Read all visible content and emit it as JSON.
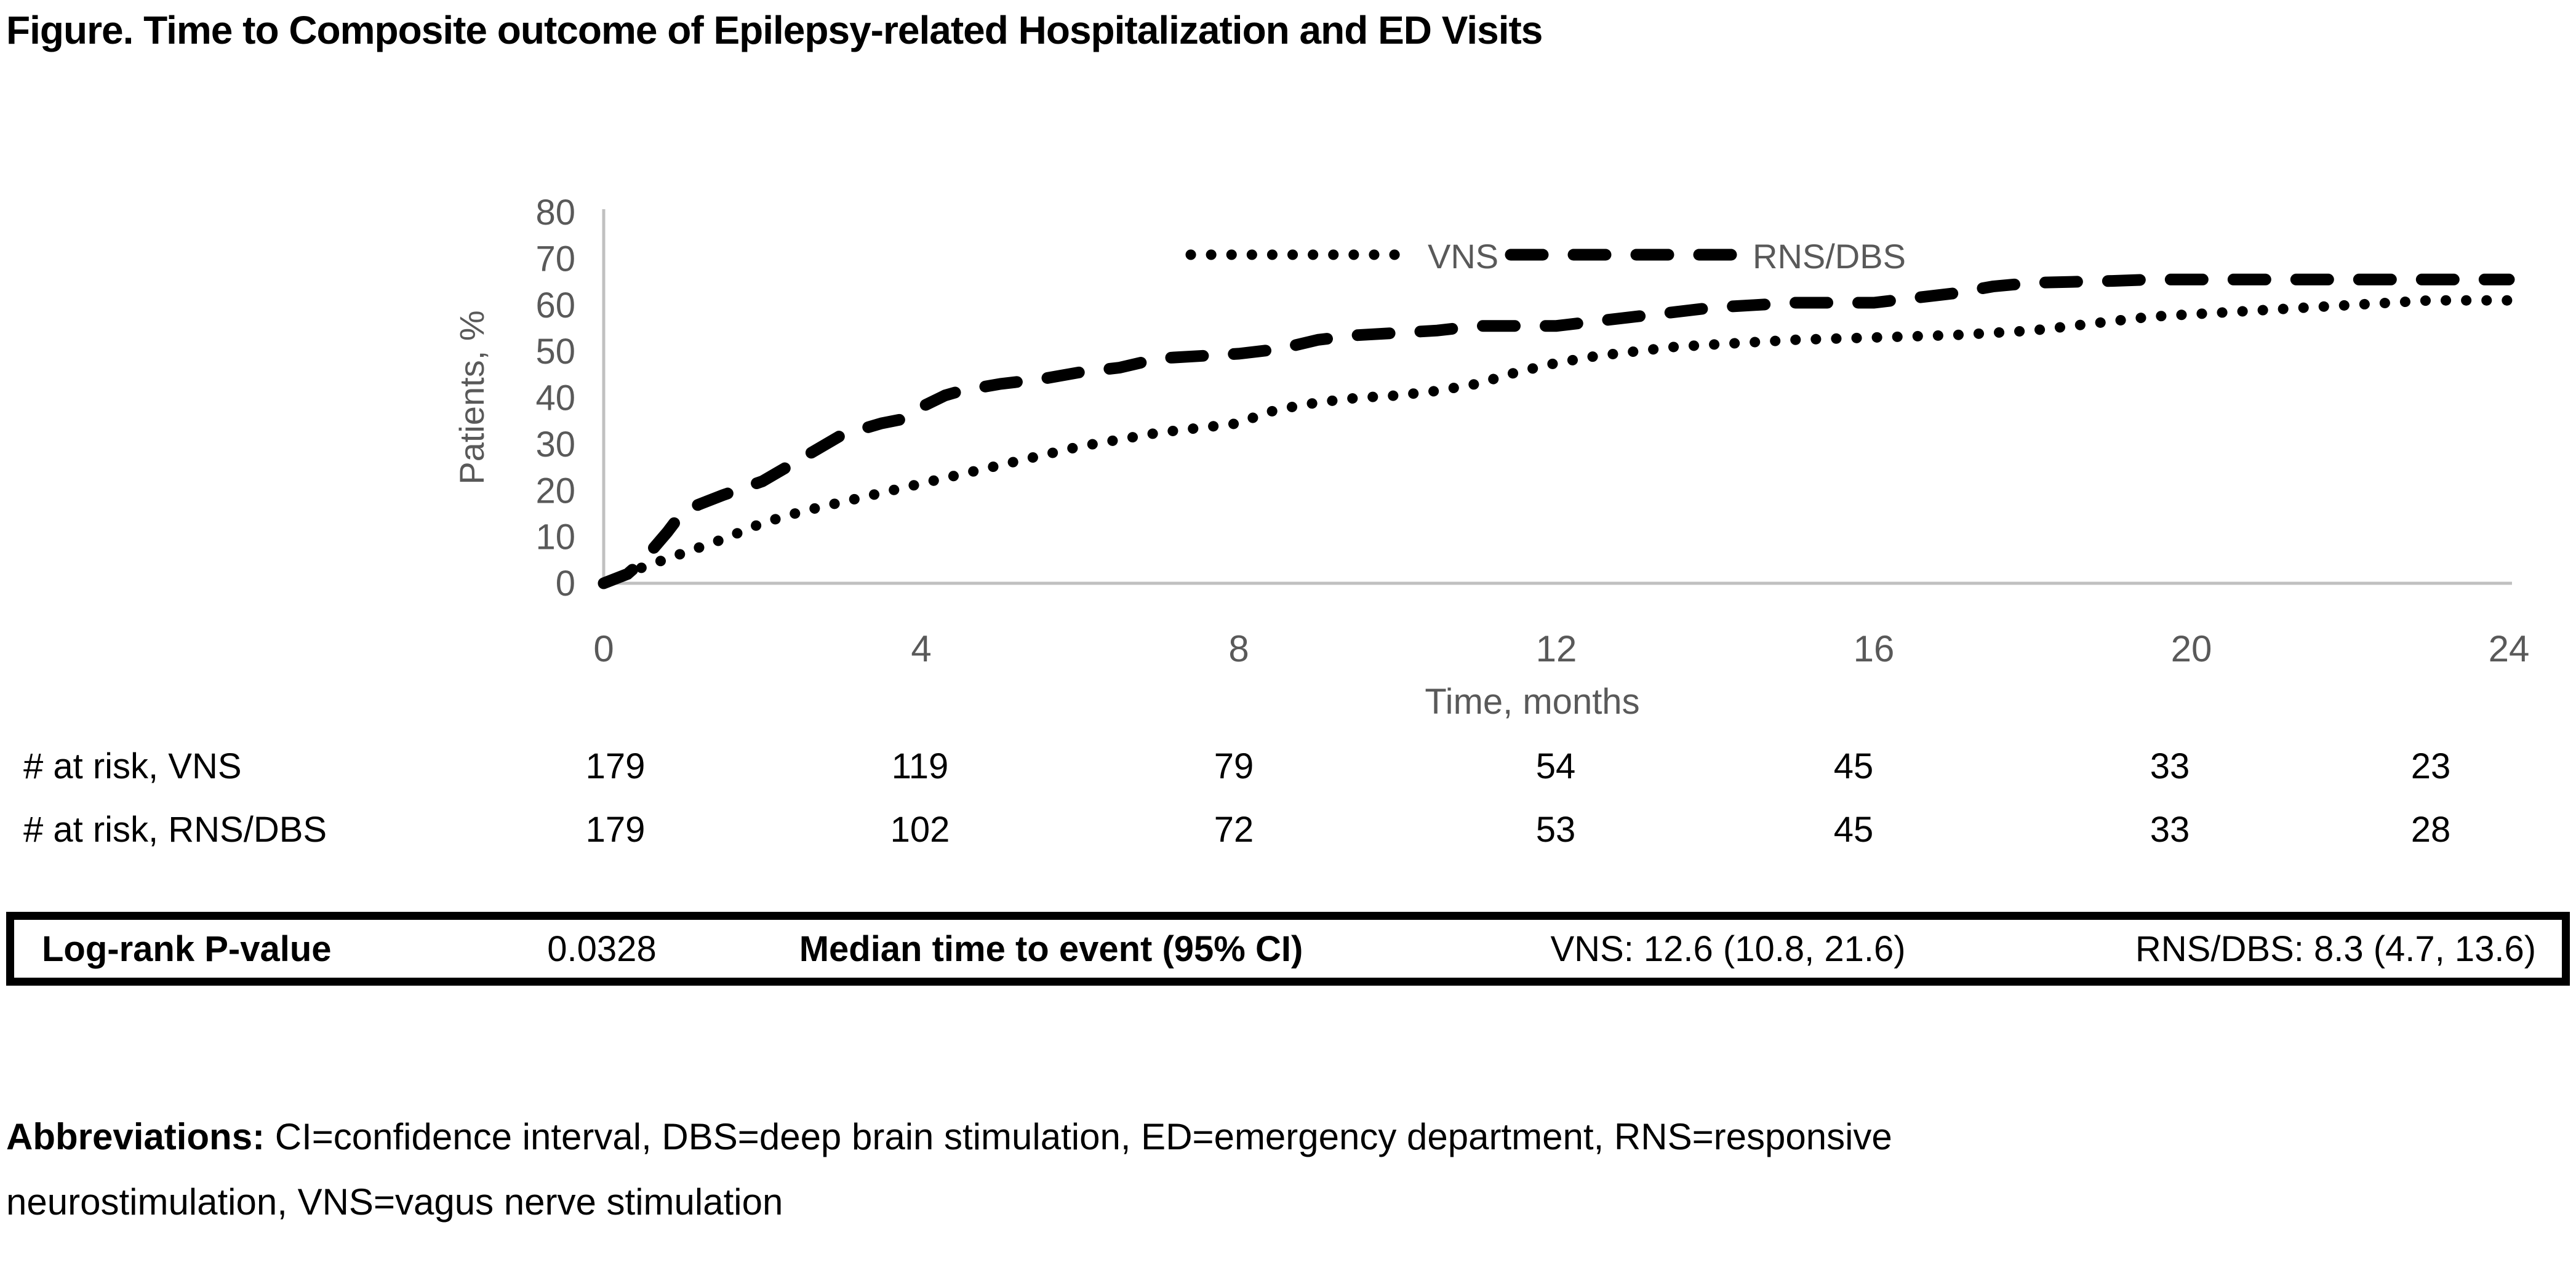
{
  "title": "Figure. Time to Composite outcome of Epilepsy-related Hospitalization and ED Visits",
  "colors": {
    "black": "#000000",
    "label_gray": "#595959",
    "axis_gray": "#c0c0c0"
  },
  "chart_data": {
    "type": "line",
    "title": "",
    "xlabel": "Time, months",
    "ylabel": "Patients, %",
    "xlim": [
      0,
      24
    ],
    "ylim": [
      0,
      80
    ],
    "x_ticks": [
      0,
      4,
      8,
      12,
      16,
      20,
      24
    ],
    "y_ticks": [
      0,
      10,
      20,
      30,
      40,
      50,
      60,
      70,
      80
    ],
    "grid": false,
    "legend_position": "top-center",
    "series": [
      {
        "name": "VNS",
        "style": "dotted",
        "color": "#000000",
        "points": [
          [
            0,
            0
          ],
          [
            0.5,
            3.5
          ],
          [
            1,
            6.5
          ],
          [
            1.5,
            9.5
          ],
          [
            2,
            13
          ],
          [
            2.5,
            15.5
          ],
          [
            3,
            17.5
          ],
          [
            3.5,
            19.5
          ],
          [
            4,
            21.5
          ],
          [
            4.5,
            23.5
          ],
          [
            5,
            25.5
          ],
          [
            5.5,
            27.5
          ],
          [
            6,
            29.5
          ],
          [
            6.5,
            31
          ],
          [
            7,
            32.5
          ],
          [
            7.5,
            33.5
          ],
          [
            8,
            34.5
          ],
          [
            8.3,
            36.5
          ],
          [
            8.5,
            37.5
          ],
          [
            9,
            39
          ],
          [
            9.5,
            40
          ],
          [
            10,
            40.5
          ],
          [
            10.5,
            41.5
          ],
          [
            11,
            43
          ],
          [
            11.5,
            45.5
          ],
          [
            12,
            47.5
          ],
          [
            12.5,
            49
          ],
          [
            13,
            50
          ],
          [
            13.5,
            51
          ],
          [
            14,
            51.5
          ],
          [
            14.5,
            52
          ],
          [
            15,
            52.5
          ],
          [
            16,
            53
          ],
          [
            17,
            53.5
          ],
          [
            17.5,
            54
          ],
          [
            18,
            54.5
          ],
          [
            18.5,
            55.5
          ],
          [
            19,
            56.5
          ],
          [
            19.5,
            57.5
          ],
          [
            20,
            58
          ],
          [
            20.5,
            58.5
          ],
          [
            21,
            59
          ],
          [
            21.5,
            59.5
          ],
          [
            22,
            60
          ],
          [
            22.5,
            60.5
          ],
          [
            23,
            61
          ],
          [
            24,
            61
          ]
        ]
      },
      {
        "name": "RNS/DBS",
        "style": "dashed",
        "color": "#000000",
        "points": [
          [
            0,
            0
          ],
          [
            0.3,
            2
          ],
          [
            0.5,
            5
          ],
          [
            0.8,
            11
          ],
          [
            1,
            15.5
          ],
          [
            1.2,
            17
          ],
          [
            1.5,
            19
          ],
          [
            2,
            22
          ],
          [
            2.3,
            25
          ],
          [
            2.5,
            27
          ],
          [
            3,
            32
          ],
          [
            3.5,
            34.5
          ],
          [
            3.8,
            35.5
          ],
          [
            4,
            38
          ],
          [
            4.3,
            40.5
          ],
          [
            4.5,
            41.5
          ],
          [
            5,
            43
          ],
          [
            5.5,
            44
          ],
          [
            6,
            45.5
          ],
          [
            6.5,
            46.5
          ],
          [
            7,
            48.5
          ],
          [
            7.5,
            49
          ],
          [
            8,
            49.5
          ],
          [
            8.5,
            50.5
          ],
          [
            9,
            52.5
          ],
          [
            9.5,
            53.5
          ],
          [
            10,
            54
          ],
          [
            10.5,
            54.5
          ],
          [
            11,
            55.5
          ],
          [
            11.5,
            55.5
          ],
          [
            12,
            55.5
          ],
          [
            12.5,
            56.5
          ],
          [
            13,
            57.5
          ],
          [
            13.5,
            58.5
          ],
          [
            14,
            59.5
          ],
          [
            14.5,
            60
          ],
          [
            15,
            60.5
          ],
          [
            16,
            60.5
          ],
          [
            16.5,
            61.5
          ],
          [
            17,
            62.5
          ],
          [
            17.5,
            64
          ],
          [
            18,
            64.8
          ],
          [
            18.5,
            65
          ],
          [
            19,
            65.2
          ],
          [
            19.5,
            65.5
          ],
          [
            20,
            65.5
          ],
          [
            21,
            65.5
          ],
          [
            22,
            65.5
          ],
          [
            23,
            65.5
          ],
          [
            24,
            65.5
          ]
        ]
      }
    ]
  },
  "risk_table": {
    "columns": [
      0,
      4,
      8,
      12,
      16,
      20,
      24
    ],
    "rows": [
      {
        "label": "# at risk, VNS",
        "values": [
          "179",
          "119",
          "79",
          "54",
          "45",
          "33",
          "23"
        ]
      },
      {
        "label": "# at risk, RNS/DBS",
        "values": [
          "179",
          "102",
          "72",
          "53",
          "45",
          "33",
          "28"
        ]
      }
    ]
  },
  "stats_bar": {
    "log_rank_label": "Log-rank P-value",
    "log_rank_value": "0.0328",
    "median_label": "Median time to event (95% CI)",
    "vns_value": "VNS: 12.6 (10.8, 21.6)",
    "rns_dbs_value": "RNS/DBS: 8.3 (4.7, 13.6)"
  },
  "abbreviations": {
    "label": "Abbreviations:",
    "line1": "CI=confidence interval, DBS=deep brain stimulation, ED=emergency department, RNS=responsive",
    "line2": "neurostimulation, VNS=vagus nerve stimulation"
  }
}
